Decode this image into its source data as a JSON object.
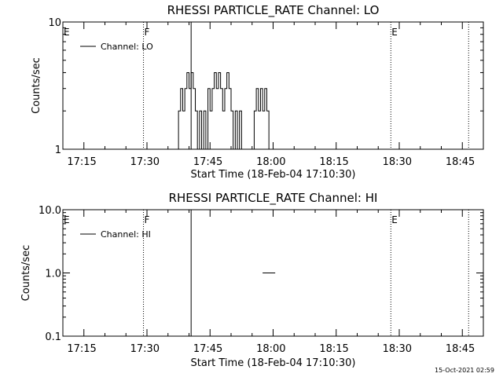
{
  "footer": {
    "stamp": "15-Oct-2021 02:59"
  },
  "chart_data": [
    {
      "type": "line",
      "title": "RHESSI PARTICLE_RATE Channel: LO",
      "xlabel": "Start Time (18-Feb-04 17:10:30)",
      "ylabel": "Counts/sec",
      "yscale": "log",
      "ylim": [
        1,
        10
      ],
      "ytick_labels": [
        "10",
        "1"
      ],
      "xlim_minutes_after_start": [
        0,
        100
      ],
      "xtick_labels": [
        "17:15",
        "17:30",
        "17:45",
        "18:00",
        "18:15",
        "18:30",
        "18:45"
      ],
      "grid": false,
      "legend": {
        "label": "Channel: LO",
        "position": "top-left"
      },
      "series": [
        {
          "name": "Channel: LO",
          "x": [
            "17:37:00",
            "17:38:00",
            "17:38:30",
            "17:39:00",
            "17:39:30",
            "17:40:00",
            "17:40:30",
            "17:41:00",
            "17:41:30",
            "17:42:00",
            "17:42:30",
            "17:43:00",
            "17:43:30",
            "17:44:00",
            "17:44:30",
            "17:45:00",
            "17:45:30",
            "17:46:00",
            "17:46:30",
            "17:47:00",
            "17:47:30",
            "17:48:00",
            "17:48:30",
            "17:49:00",
            "17:49:30",
            "17:50:00",
            "17:50:30",
            "17:51:00",
            "17:51:30",
            "17:52:00",
            "17:52:30",
            "17:53:00",
            "17:55:30",
            "17:56:00",
            "17:56:30",
            "17:57:00",
            "17:57:30",
            "17:58:00",
            "17:58:30",
            "17:59:00",
            "17:59:30",
            "18:00:00",
            "18:00:30"
          ],
          "values": [
            1,
            2,
            3,
            2,
            3,
            4,
            3,
            4,
            3,
            2,
            1,
            2,
            1,
            2,
            1,
            3,
            2,
            3,
            4,
            3,
            4,
            3,
            2,
            3,
            4,
            3,
            2,
            1,
            2,
            1,
            2,
            1,
            1,
            2,
            3,
            2,
            3,
            2,
            3,
            2,
            1,
            1,
            1
          ]
        }
      ],
      "annotations": {
        "markers": [
          {
            "label": "E",
            "time": "17:10:30",
            "style": "dotted"
          },
          {
            "label": "F",
            "time": "17:29:40",
            "style": "dotted"
          },
          {
            "label": "",
            "time": "17:41:00",
            "style": "solid"
          },
          {
            "label": "E",
            "time": "18:28:30",
            "style": "dotted"
          },
          {
            "label": "",
            "time": "18:47:00",
            "style": "dotted"
          }
        ]
      }
    },
    {
      "type": "line",
      "title": "RHESSI PARTICLE_RATE Channel: HI",
      "xlabel": "Start Time (18-Feb-04 17:10:30)",
      "ylabel": "Counts/sec",
      "yscale": "log",
      "ylim": [
        0.1,
        10
      ],
      "ytick_labels": [
        "10.0",
        "1.0",
        "0.1"
      ],
      "xlim_minutes_after_start": [
        0,
        100
      ],
      "xtick_labels": [
        "17:15",
        "17:30",
        "17:45",
        "18:00",
        "18:15",
        "18:30",
        "18:45"
      ],
      "grid": false,
      "legend": {
        "label": "Channel: HI",
        "position": "top-left"
      },
      "series": [
        {
          "name": "Channel: HI",
          "x": [
            "17:58:00",
            "18:01:00"
          ],
          "values": [
            1,
            1
          ]
        }
      ],
      "annotations": {
        "markers": [
          {
            "label": "E",
            "time": "17:10:30",
            "style": "dotted"
          },
          {
            "label": "F",
            "time": "17:29:40",
            "style": "dotted"
          },
          {
            "label": "",
            "time": "17:41:00",
            "style": "solid"
          },
          {
            "label": "E",
            "time": "18:28:30",
            "style": "dotted"
          },
          {
            "label": "",
            "time": "18:47:00",
            "style": "dotted"
          }
        ]
      }
    }
  ]
}
